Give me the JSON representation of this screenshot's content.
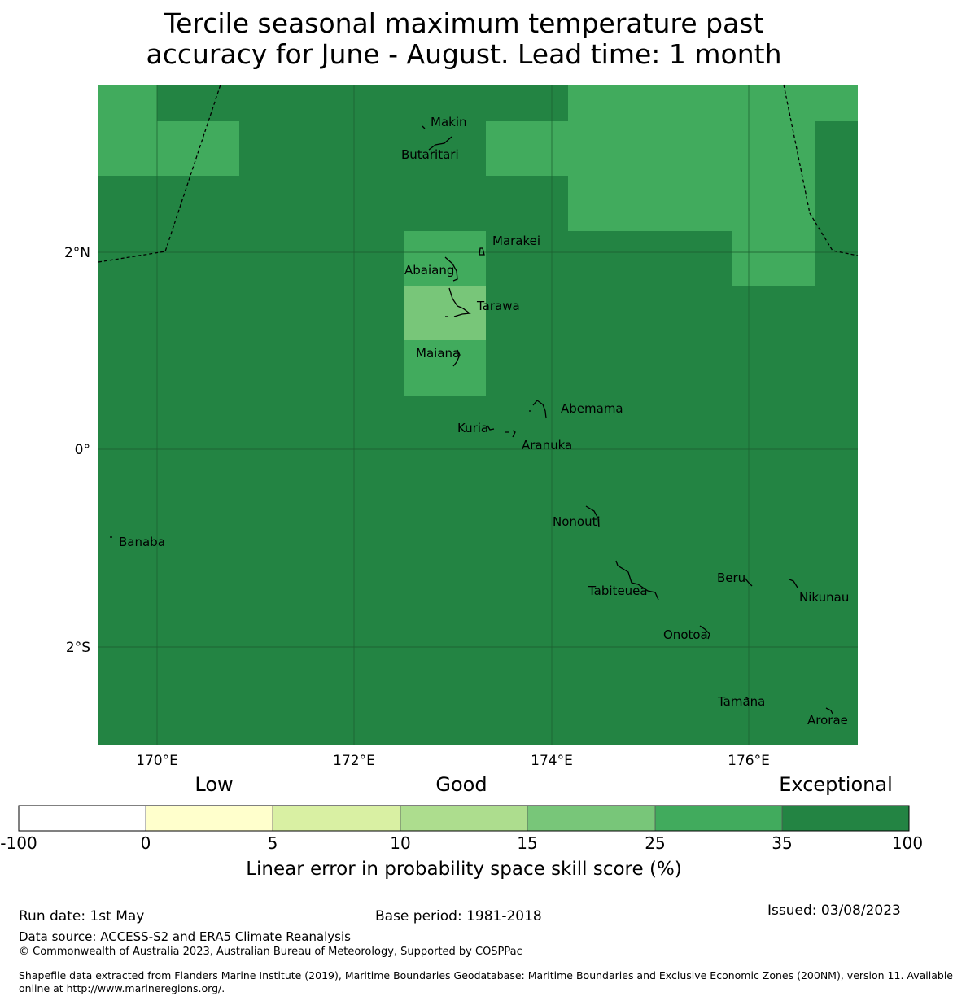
{
  "title": {
    "line1": "Tercile seasonal maximum temperature past",
    "line2": "accuracy for June - August. Lead time: 1 month"
  },
  "colors": {
    "c_100_0": "#ffffff",
    "c_0_5": "#ffffcc",
    "c_5_10": "#d9f0a3",
    "c_10_15": "#addd8e",
    "c_15_25": "#78c679",
    "c_25_35": "#41ab5d",
    "c_35_100": "#238443"
  },
  "map": {
    "lon_labels": [
      "170°E",
      "172°E",
      "174°E",
      "176°E"
    ],
    "lat_labels": [
      "2°N",
      "0°",
      "2°S"
    ],
    "islands": [
      {
        "name": "Makin",
        "label": "Makin"
      },
      {
        "name": "Butaritari",
        "label": "Butaritari"
      },
      {
        "name": "Marakei",
        "label": "Marakei"
      },
      {
        "name": "Abaiang",
        "label": "Abaiang"
      },
      {
        "name": "Tarawa",
        "label": "Tarawa"
      },
      {
        "name": "Maiana",
        "label": "Maiana"
      },
      {
        "name": "Abemama",
        "label": "Abemama"
      },
      {
        "name": "Kuria",
        "label": "Kuria"
      },
      {
        "name": "Aranuka",
        "label": "Aranuka"
      },
      {
        "name": "Nonouti",
        "label": "Nonouti"
      },
      {
        "name": "Banaba",
        "label": "Banaba"
      },
      {
        "name": "Beru",
        "label": "Beru"
      },
      {
        "name": "Tabiteuea",
        "label": "Tabiteuea"
      },
      {
        "name": "Nikunau",
        "label": "Nikunau"
      },
      {
        "name": "Onotoa",
        "label": "Onotoa"
      },
      {
        "name": "Tamana",
        "label": "Tamana"
      },
      {
        "name": "Arorae",
        "label": "Arorae"
      }
    ]
  },
  "colorbar": {
    "categories": [
      "Low",
      "Good",
      "Exceptional"
    ],
    "ticks": [
      "-100",
      "0",
      "5",
      "10",
      "15",
      "25",
      "35",
      "100"
    ],
    "title": "Linear error in probability space skill score (%)"
  },
  "footer": {
    "run_date": "Run date: 1st May",
    "base_period": "Base period: 1981-2018",
    "issued": "Issued: 03/08/2023",
    "data_source": "Data source: ACCESS-S2 and ERA5 Climate Reanalysis",
    "copyright": "© Commonwealth of Australia 2023, Australian Bureau of Meteorology, Supported by COSPPac",
    "shapefile_line1": "Shapefile data extracted from Flanders Marine Institute (2019), Maritime Boundaries Geodatabase: Maritime Boundaries and Exclusive Economic Zones (200NM), version 11. Available",
    "shapefile_line2": "online at http://www.marineregions.org/."
  }
}
